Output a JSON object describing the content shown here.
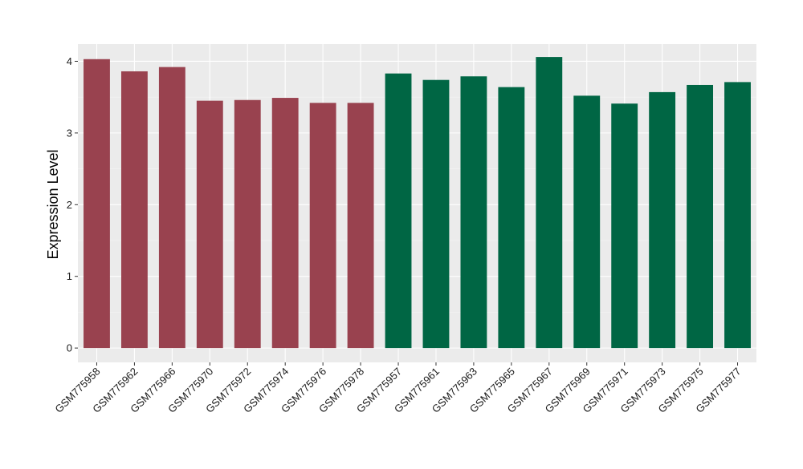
{
  "chart_data": {
    "type": "bar",
    "title": "",
    "xlabel": "",
    "ylabel": "Expression Level",
    "ylim": [
      -0.2,
      4.24
    ],
    "yticks": [
      0,
      1,
      2,
      3,
      4
    ],
    "grid": true,
    "legend": "none",
    "categories": [
      "GSM775958",
      "GSM775962",
      "GSM775966",
      "GSM775970",
      "GSM775972",
      "GSM775974",
      "GSM775976",
      "GSM775978",
      "GSM775957",
      "GSM775961",
      "GSM775963",
      "GSM775965",
      "GSM775967",
      "GSM775969",
      "GSM775971",
      "GSM775973",
      "GSM775975",
      "GSM775977"
    ],
    "values": [
      4.03,
      3.86,
      3.92,
      3.45,
      3.46,
      3.49,
      3.42,
      3.42,
      3.83,
      3.74,
      3.79,
      3.64,
      4.06,
      3.52,
      3.41,
      3.57,
      3.67,
      3.71
    ],
    "groups": [
      0,
      0,
      0,
      0,
      0,
      0,
      0,
      0,
      1,
      1,
      1,
      1,
      1,
      1,
      1,
      1,
      1,
      1
    ],
    "colors": {
      "group_colors": [
        "#99424f",
        "#006644"
      ],
      "panel_background": "#ebebeb",
      "grid_major": "#ffffff",
      "grid_minor": "#f5f5f5"
    }
  }
}
